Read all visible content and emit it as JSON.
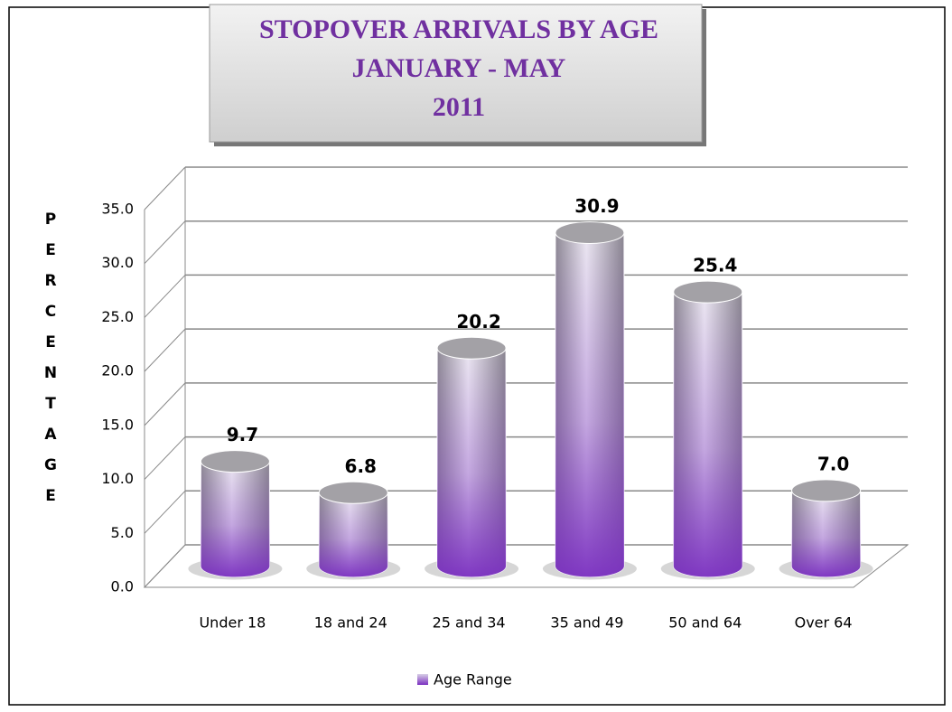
{
  "chart_data": {
    "type": "bar",
    "title": [
      "STOPOVER ARRIVALS BY AGE",
      "JANUARY - MAY",
      "2011"
    ],
    "y_label": "PERCENTAGE",
    "categories": [
      "Under 18",
      "18 and 24",
      "25 and 34",
      "35 and 49",
      "50 and 64",
      "Over 64"
    ],
    "series": [
      {
        "name": "Age Range",
        "color": "#7a2fc0",
        "values": [
          9.7,
          6.8,
          20.2,
          30.9,
          25.4,
          7.0
        ],
        "value_labels": [
          "9.7",
          "6.8",
          "20.2",
          "30.9",
          "25.4",
          "7.0"
        ]
      }
    ],
    "ylim": [
      0,
      35
    ],
    "yticks": [
      {
        "value": 0,
        "label": "0.0"
      },
      {
        "value": 5,
        "label": "5.0"
      },
      {
        "value": 10,
        "label": "10.0"
      },
      {
        "value": 15,
        "label": "15.0"
      },
      {
        "value": 20,
        "label": "20.0"
      },
      {
        "value": 25,
        "label": "25.0"
      },
      {
        "value": 30,
        "label": "30.0"
      },
      {
        "value": 35,
        "label": "35.0"
      }
    ],
    "grid": true,
    "legend": "bottom"
  }
}
